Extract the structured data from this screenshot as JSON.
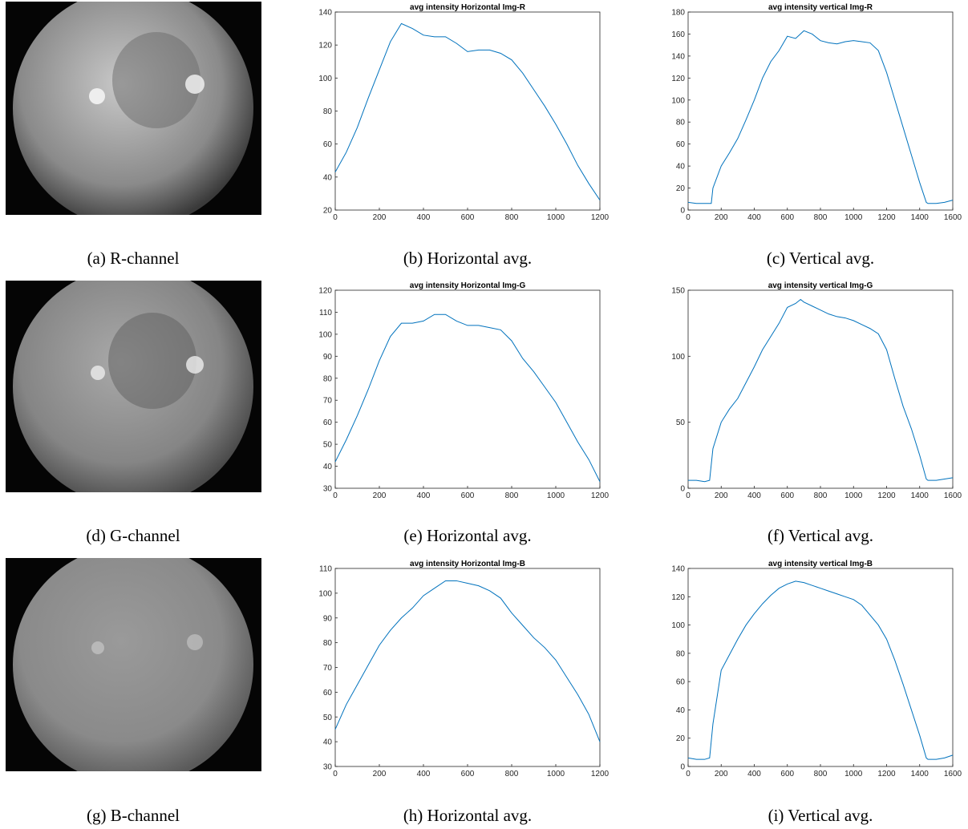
{
  "images": [
    {
      "caption": "(a) R-channel"
    },
    {
      "caption": "(d) G-channel"
    },
    {
      "caption": "(g) B-channel"
    }
  ],
  "chart_data": [
    {
      "type": "line",
      "title": "avg intensity Horizontal Img-R",
      "caption": "(b) Horizontal avg.",
      "x": [
        0,
        50,
        100,
        150,
        200,
        250,
        300,
        350,
        400,
        450,
        500,
        550,
        600,
        650,
        700,
        750,
        800,
        850,
        900,
        950,
        1000,
        1050,
        1100,
        1150,
        1200
      ],
      "series": [
        {
          "color": "#0072bd",
          "values": [
            43,
            55,
            70,
            88,
            105,
            122,
            133,
            130,
            126,
            125,
            125,
            121,
            116,
            117,
            117,
            115,
            111,
            103,
            93,
            83,
            72,
            60,
            47,
            36,
            26
          ]
        }
      ],
      "xlim": [
        0,
        1200
      ],
      "xticks": [
        0,
        200,
        400,
        600,
        800,
        1000,
        1200
      ],
      "ylim": [
        20,
        140
      ],
      "yticks": [
        20,
        40,
        60,
        80,
        100,
        120,
        140
      ]
    },
    {
      "type": "line",
      "title": "avg intensity vertical Img-R",
      "caption": "(c) Vertical avg.",
      "x": [
        0,
        50,
        100,
        140,
        150,
        200,
        250,
        300,
        350,
        400,
        450,
        500,
        550,
        600,
        650,
        700,
        750,
        800,
        850,
        900,
        950,
        1000,
        1050,
        1100,
        1150,
        1200,
        1250,
        1300,
        1350,
        1400,
        1440,
        1450,
        1500,
        1550,
        1600
      ],
      "series": [
        {
          "color": "#0072bd",
          "values": [
            7,
            6,
            6,
            6,
            20,
            40,
            52,
            65,
            82,
            100,
            120,
            135,
            145,
            158,
            156,
            163,
            160,
            154,
            152,
            151,
            153,
            154,
            153,
            152,
            145,
            125,
            100,
            75,
            50,
            25,
            7,
            6,
            6,
            7,
            9
          ]
        }
      ],
      "xlim": [
        0,
        1600
      ],
      "xticks": [
        0,
        200,
        400,
        600,
        800,
        1000,
        1200,
        1400,
        1600
      ],
      "ylim": [
        0,
        180
      ],
      "yticks": [
        0,
        20,
        40,
        60,
        80,
        100,
        120,
        140,
        160,
        180
      ]
    },
    {
      "type": "line",
      "title": "avg intensity Horizontal Img-G",
      "caption": "(e) Horizontal avg.",
      "x": [
        0,
        50,
        100,
        150,
        200,
        250,
        300,
        350,
        400,
        450,
        500,
        550,
        600,
        650,
        700,
        750,
        800,
        850,
        900,
        950,
        1000,
        1050,
        1100,
        1150,
        1200
      ],
      "series": [
        {
          "color": "#0072bd",
          "values": [
            42,
            52,
            63,
            75,
            88,
            99,
            105,
            105,
            106,
            109,
            109,
            106,
            104,
            104,
            103,
            102,
            97,
            89,
            83,
            76,
            69,
            60,
            51,
            43,
            33
          ]
        }
      ],
      "xlim": [
        0,
        1200
      ],
      "xticks": [
        0,
        200,
        400,
        600,
        800,
        1000,
        1200
      ],
      "ylim": [
        30,
        120
      ],
      "yticks": [
        30,
        40,
        50,
        60,
        70,
        80,
        90,
        100,
        110,
        120
      ]
    },
    {
      "type": "line",
      "title": "avg intensity vertical Img-G",
      "caption": "(f) Vertical avg.",
      "x": [
        0,
        50,
        100,
        130,
        150,
        200,
        250,
        300,
        350,
        400,
        450,
        500,
        550,
        600,
        650,
        680,
        700,
        750,
        800,
        850,
        900,
        950,
        1000,
        1050,
        1100,
        1150,
        1200,
        1250,
        1300,
        1350,
        1400,
        1440,
        1450,
        1500,
        1550,
        1600
      ],
      "series": [
        {
          "color": "#0072bd",
          "values": [
            6,
            6,
            5,
            6,
            30,
            50,
            60,
            68,
            80,
            92,
            105,
            115,
            125,
            137,
            140,
            143,
            141,
            138,
            135,
            132,
            130,
            129,
            127,
            124,
            121,
            117,
            105,
            83,
            62,
            45,
            25,
            7,
            6,
            6,
            7,
            8
          ]
        }
      ],
      "xlim": [
        0,
        1600
      ],
      "xticks": [
        0,
        200,
        400,
        600,
        800,
        1000,
        1200,
        1400,
        1600
      ],
      "ylim": [
        0,
        150
      ],
      "yticks": [
        0,
        50,
        100,
        150
      ]
    },
    {
      "type": "line",
      "title": "avg intensity Horizontal Img-B",
      "caption": "(h) Horizontal avg.",
      "x": [
        0,
        50,
        100,
        150,
        200,
        250,
        300,
        350,
        400,
        450,
        500,
        550,
        600,
        650,
        700,
        750,
        800,
        850,
        900,
        950,
        1000,
        1050,
        1100,
        1150,
        1200
      ],
      "series": [
        {
          "color": "#0072bd",
          "values": [
            45,
            55,
            63,
            71,
            79,
            85,
            90,
            94,
            99,
            102,
            105,
            105,
            104,
            103,
            101,
            98,
            92,
            87,
            82,
            78,
            73,
            66,
            59,
            51,
            40
          ]
        }
      ],
      "xlim": [
        0,
        1200
      ],
      "xticks": [
        0,
        200,
        400,
        600,
        800,
        1000,
        1200
      ],
      "ylim": [
        30,
        110
      ],
      "yticks": [
        30,
        40,
        50,
        60,
        70,
        80,
        90,
        100,
        110
      ]
    },
    {
      "type": "line",
      "title": "avg intensity vertical Img-B",
      "caption": "(i) Vertical avg.",
      "x": [
        0,
        50,
        100,
        130,
        150,
        200,
        250,
        300,
        350,
        400,
        450,
        500,
        550,
        600,
        650,
        700,
        750,
        800,
        850,
        900,
        950,
        1000,
        1050,
        1100,
        1150,
        1200,
        1250,
        1300,
        1350,
        1400,
        1440,
        1450,
        1500,
        1550,
        1600
      ],
      "series": [
        {
          "color": "#0072bd",
          "values": [
            6,
            5,
            5,
            6,
            30,
            68,
            79,
            90,
            100,
            108,
            115,
            121,
            126,
            129,
            131,
            130,
            128,
            126,
            124,
            122,
            120,
            118,
            114,
            107,
            100,
            90,
            75,
            58,
            40,
            22,
            6,
            5,
            5,
            6,
            8
          ]
        }
      ],
      "xlim": [
        0,
        1600
      ],
      "xticks": [
        0,
        200,
        400,
        600,
        800,
        1000,
        1200,
        1400,
        1600
      ],
      "ylim": [
        0,
        140
      ],
      "yticks": [
        0,
        20,
        40,
        60,
        80,
        100,
        120,
        140
      ]
    }
  ]
}
